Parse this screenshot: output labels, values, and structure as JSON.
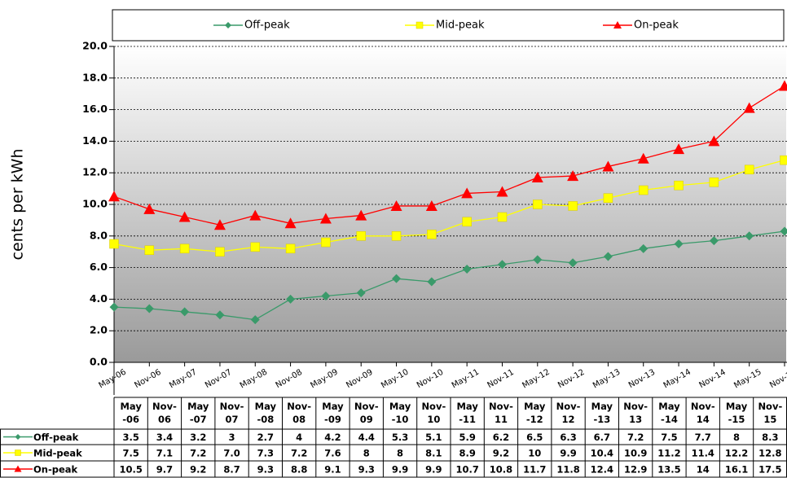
{
  "chart_data": {
    "type": "line",
    "y_label": "cents per kWh",
    "categories": [
      "May-06",
      "Nov-06",
      "May-07",
      "Nov-07",
      "May-08",
      "Nov-08",
      "May-09",
      "Nov-09",
      "May-10",
      "Nov-10",
      "May-11",
      "Nov-11",
      "May-12",
      "Nov-12",
      "May-13",
      "Nov-13",
      "May-14",
      "Nov-14",
      "May-15",
      "Nov-15"
    ],
    "series": [
      {
        "name": "Off-peak",
        "color": "#3a9a6a",
        "marker": "diamond",
        "values": [
          3.5,
          3.4,
          3.2,
          3,
          2.7,
          4,
          4.2,
          4.4,
          5.3,
          5.1,
          5.9,
          6.2,
          6.5,
          6.3,
          6.7,
          7.2,
          7.5,
          7.7,
          8,
          8.3
        ],
        "value_labels": [
          "3.5",
          "3.4",
          "3.2",
          "3",
          "2.7",
          "4",
          "4.2",
          "4.4",
          "5.3",
          "5.1",
          "5.9",
          "6.2",
          "6.5",
          "6.3",
          "6.7",
          "7.2",
          "7.5",
          "7.7",
          "8",
          "8.3"
        ]
      },
      {
        "name": "Mid-peak",
        "color": "#ffff00",
        "marker": "square",
        "values": [
          7.5,
          7.1,
          7.2,
          7.0,
          7.3,
          7.2,
          7.6,
          8,
          8,
          8.1,
          8.9,
          9.2,
          10,
          9.9,
          10.4,
          10.9,
          11.2,
          11.4,
          12.2,
          12.8
        ],
        "value_labels": [
          "7.5",
          "7.1",
          "7.2",
          "7.0",
          "7.3",
          "7.2",
          "7.6",
          "8",
          "8",
          "8.1",
          "8.9",
          "9.2",
          "10",
          "9.9",
          "10.4",
          "10.9",
          "11.2",
          "11.4",
          "12.2",
          "12.8"
        ]
      },
      {
        "name": "On-peak",
        "color": "#ff0000",
        "marker": "triangle",
        "values": [
          10.5,
          9.7,
          9.2,
          8.7,
          9.3,
          8.8,
          9.1,
          9.3,
          9.9,
          9.9,
          10.7,
          10.8,
          11.7,
          11.8,
          12.4,
          12.9,
          13.5,
          14,
          16.1,
          17.5
        ],
        "value_labels": [
          "10.5",
          "9.7",
          "9.2",
          "8.7",
          "9.3",
          "8.8",
          "9.1",
          "9.3",
          "9.9",
          "9.9",
          "10.7",
          "10.8",
          "11.7",
          "11.8",
          "12.4",
          "12.9",
          "13.5",
          "14",
          "16.1",
          "17.5"
        ]
      }
    ],
    "ylim": [
      0,
      20
    ],
    "yticks": [
      {
        "value": 0,
        "label": "0.0"
      },
      {
        "value": 2,
        "label": "2.0"
      },
      {
        "value": 4,
        "label": "4.0"
      },
      {
        "value": 6,
        "label": "6.0"
      },
      {
        "value": 8,
        "label": "8.0"
      },
      {
        "value": 10,
        "label": "10.0"
      },
      {
        "value": 12,
        "label": "12.0"
      },
      {
        "value": 14,
        "label": "14.0"
      },
      {
        "value": 16,
        "label": "16.0"
      },
      {
        "value": 18,
        "label": "18.0"
      },
      {
        "value": 20,
        "label": "20.0"
      }
    ],
    "grid": true,
    "legend": "top",
    "data_table": true
  }
}
